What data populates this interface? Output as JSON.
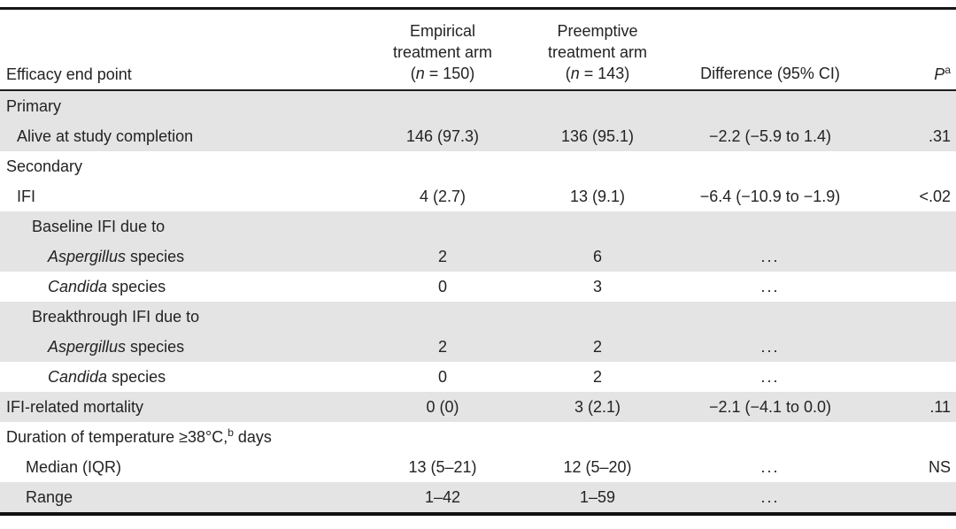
{
  "header": {
    "endpoint": "Efficacy end point",
    "empirical_arm": {
      "line1": "Empirical",
      "line2": "treatment arm",
      "paren_open": "(",
      "n": "n",
      "n_rest": " = 150)"
    },
    "preemptive_arm": {
      "line1": "Preemptive",
      "line2": "treatment arm",
      "paren_open": "(",
      "n": "n",
      "n_rest": " = 143)"
    },
    "difference": "Difference (95% CI)",
    "p": "P",
    "p_sup": "a"
  },
  "rows": [
    {
      "label": "Primary",
      "empirical": "",
      "preemptive": "",
      "difference": "",
      "p": ""
    },
    {
      "label": "Alive at study completion",
      "empirical": "146 (97.3)",
      "preemptive": "136 (95.1)",
      "difference": "−2.2 (−5.9 to 1.4)",
      "p": ".31"
    },
    {
      "label": "Secondary",
      "empirical": "",
      "preemptive": "",
      "difference": "",
      "p": ""
    },
    {
      "label": "IFI",
      "empirical": "4 (2.7)",
      "preemptive": "13 (9.1)",
      "difference": "−6.4 (−10.9 to −1.9)",
      "p": "<.02"
    },
    {
      "label": "Baseline IFI due to",
      "empirical": "",
      "preemptive": "",
      "difference": "",
      "p": ""
    },
    {
      "label_italic": "Aspergillus",
      "label": " species",
      "empirical": "2",
      "preemptive": "6",
      "difference": "...",
      "p": ""
    },
    {
      "label_italic": "Candida",
      "label": " species",
      "empirical": "0",
      "preemptive": "3",
      "difference": "...",
      "p": ""
    },
    {
      "label": "Breakthrough IFI due to",
      "empirical": "",
      "preemptive": "",
      "difference": "",
      "p": ""
    },
    {
      "label_italic": "Aspergillus",
      "label": " species",
      "empirical": "2",
      "preemptive": "2",
      "difference": "...",
      "p": ""
    },
    {
      "label_italic": "Candida",
      "label": " species",
      "empirical": "0",
      "preemptive": "2",
      "difference": "...",
      "p": ""
    },
    {
      "label": "IFI-related mortality",
      "empirical": "0 (0)",
      "preemptive": "3 (2.1)",
      "difference": "−2.1 (−4.1 to 0.0)",
      "p": ".11"
    },
    {
      "label": "Duration of temperature ≥38°C,",
      "label_sup": "b",
      "label_tail": " days",
      "empirical": "",
      "preemptive": "",
      "difference": "",
      "p": ""
    },
    {
      "label": "Median (IQR)",
      "empirical": "13 (5–21)",
      "preemptive": "12 (5–20)",
      "difference": "...",
      "p": "NS"
    },
    {
      "label": "Range",
      "empirical": "1–42",
      "preemptive": "1–59",
      "difference": "...",
      "p": ""
    }
  ]
}
